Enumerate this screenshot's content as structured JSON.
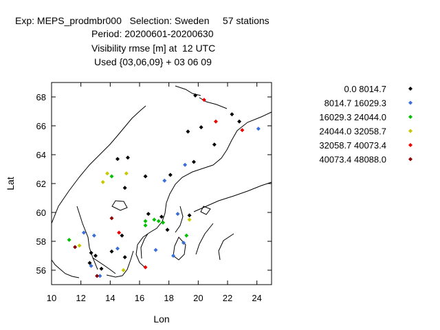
{
  "title": {
    "line1": "Exp: MEPS_prodmbr000   Selection: Sweden     57 stations",
    "line2": "Period: 20200601-20200630",
    "line3": "Visibility rmse [m] at  12 UTC",
    "line4": "Used {03,06,09} + 03 06 09"
  },
  "chart_data": {
    "type": "scatter",
    "xlabel": "Lon",
    "ylabel": "Lat",
    "xlim": [
      10,
      25
    ],
    "ylim": [
      55,
      69
    ],
    "xticks": [
      10,
      12,
      14,
      16,
      18,
      20,
      22,
      24
    ],
    "yticks": [
      56,
      58,
      60,
      62,
      64,
      66,
      68
    ],
    "legend_position": "right",
    "series": [
      {
        "name": "0.0 8014.7",
        "color": "#000000",
        "points": [
          [
            19.8,
            68.1
          ],
          [
            22.3,
            66.8
          ],
          [
            20.2,
            65.9
          ],
          [
            19.3,
            65.6
          ],
          [
            22.8,
            66.3
          ],
          [
            21.1,
            64.7
          ],
          [
            14.5,
            63.7
          ],
          [
            15.2,
            63.8
          ],
          [
            16.4,
            62.5
          ],
          [
            15.0,
            61.7
          ],
          [
            18.1,
            62.6
          ],
          [
            19.7,
            63.5
          ],
          [
            16.6,
            59.9
          ],
          [
            17.5,
            59.7
          ],
          [
            17.9,
            58.8
          ],
          [
            19.4,
            59.8
          ],
          [
            14.8,
            58.4
          ],
          [
            12.7,
            57.2
          ],
          [
            13.0,
            57.0
          ],
          [
            14.1,
            57.3
          ],
          [
            15.0,
            56.9
          ],
          [
            13.4,
            56.1
          ],
          [
            12.6,
            56.5
          ]
        ]
      },
      {
        "name": "8014.7 16029.3",
        "color": "#3a6fd8",
        "points": [
          [
            24.1,
            65.8
          ],
          [
            19.1,
            63.3
          ],
          [
            17.7,
            62.2
          ],
          [
            18.6,
            59.9
          ],
          [
            12.2,
            58.6
          ],
          [
            12.9,
            58.4
          ],
          [
            14.5,
            57.5
          ],
          [
            17.1,
            57.4
          ],
          [
            19.0,
            57.9
          ],
          [
            18.3,
            57.0
          ],
          [
            12.7,
            56.3
          ],
          [
            13.3,
            55.6
          ]
        ]
      },
      {
        "name": "16029.3 24044.0",
        "color": "#00c000",
        "points": [
          [
            14.1,
            62.5
          ],
          [
            16.4,
            59.1
          ],
          [
            16.4,
            59.4
          ],
          [
            17.0,
            59.5
          ],
          [
            17.3,
            59.4
          ],
          [
            17.6,
            59.3
          ],
          [
            19.2,
            58.4
          ],
          [
            11.2,
            58.1
          ]
        ]
      },
      {
        "name": "24044.0 32058.7",
        "color": "#c8c800",
        "points": [
          [
            13.5,
            62.1
          ],
          [
            13.8,
            62.7
          ],
          [
            15.1,
            62.7
          ],
          [
            19.4,
            59.5
          ],
          [
            11.9,
            57.7
          ],
          [
            14.9,
            56.0
          ]
        ]
      },
      {
        "name": "32058.7 40073.4",
        "color": "#ee0000",
        "points": [
          [
            20.4,
            67.8
          ],
          [
            21.2,
            66.3
          ],
          [
            23.0,
            65.7
          ],
          [
            14.6,
            58.6
          ],
          [
            16.4,
            56.2
          ]
        ]
      },
      {
        "name": "40073.4 48088.0",
        "color": "#8b0000",
        "points": [
          [
            14.1,
            59.6
          ],
          [
            11.6,
            57.6
          ],
          [
            13.1,
            55.6
          ]
        ]
      }
    ]
  }
}
